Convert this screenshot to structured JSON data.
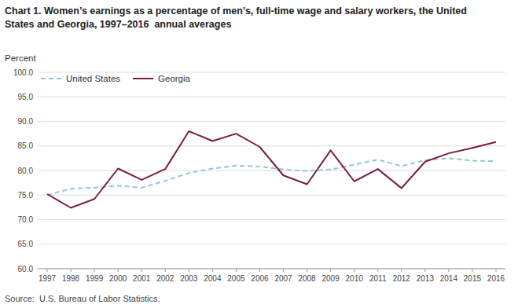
{
  "chart_data": {
    "type": "line",
    "title": "Chart 1. Women’s earnings as a percentage of men’s, full-time wage and salary workers, the United\nStates and Georgia, 1997–2016  annual averages",
    "y_label": "Percent",
    "annotations": [
      "Source:  U.S. Bureau of Labor Statistics."
    ],
    "x": [
      1997,
      1998,
      1999,
      2000,
      2001,
      2002,
      2003,
      2004,
      2005,
      2006,
      2007,
      2008,
      2009,
      2010,
      2011,
      2012,
      2013,
      2014,
      2015,
      2016
    ],
    "series": [
      {
        "name": "United States",
        "color": "#92c5de",
        "line_style": "dashed",
        "values": [
          75.0,
          76.3,
          76.5,
          76.9,
          76.5,
          77.9,
          79.5,
          80.4,
          81.0,
          80.8,
          80.2,
          79.9,
          80.2,
          81.2,
          82.2,
          80.9,
          82.1,
          82.5,
          82.0,
          81.9
        ]
      },
      {
        "name": "Georgia",
        "color": "#7b1f3a",
        "line_style": "solid",
        "values": [
          75.2,
          72.4,
          74.2,
          80.4,
          78.1,
          80.3,
          88.0,
          86.0,
          87.5,
          84.8,
          79.0,
          77.2,
          84.1,
          77.8,
          80.3,
          76.4,
          81.8,
          83.5,
          84.6,
          85.8
        ]
      }
    ],
    "xlim": [
      1996.6,
      2016.4
    ],
    "xticks": [
      1997,
      1998,
      1999,
      2000,
      2001,
      2002,
      2003,
      2004,
      2005,
      2006,
      2007,
      2008,
      2009,
      2010,
      2011,
      2012,
      2013,
      2014,
      2015,
      2016
    ],
    "ylim": [
      60.0,
      100.0
    ],
    "yticks": [
      {
        "value": 60.0,
        "label": "60.0"
      },
      {
        "value": 65.0,
        "label": "65.0"
      },
      {
        "value": 70.0,
        "label": "70.0"
      },
      {
        "value": 75.0,
        "label": "75.0"
      },
      {
        "value": 80.0,
        "label": "80.0"
      },
      {
        "value": 85.0,
        "label": "85.0"
      },
      {
        "value": 90.0,
        "label": "90.0"
      },
      {
        "value": 95.0,
        "label": "95.0"
      },
      {
        "value": 100.0,
        "label": "100.0"
      }
    ],
    "grid": true,
    "legend": "upper left"
  }
}
